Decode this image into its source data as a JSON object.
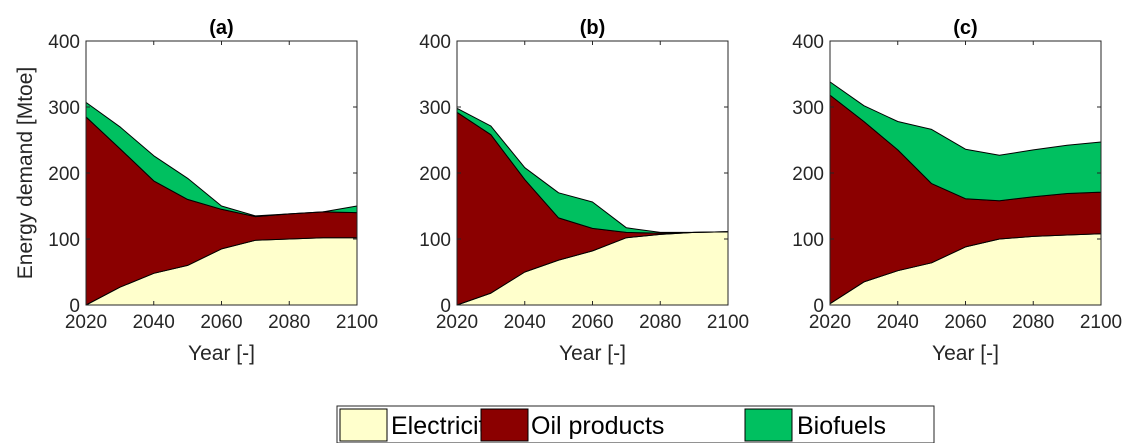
{
  "chart_data": {
    "type": "area",
    "stacked": true,
    "ylabel": "Energy demand [Mtoe]",
    "xlabel": "Year [-]",
    "xlim": [
      2020,
      2100
    ],
    "ylim": [
      0,
      400
    ],
    "xticks": [
      2020,
      2040,
      2060,
      2080,
      2100
    ],
    "yticks": [
      0,
      100,
      200,
      300,
      400
    ],
    "x": [
      2020,
      2030,
      2040,
      2050,
      2060,
      2070,
      2080,
      2090,
      2100
    ],
    "series_names": [
      "Electricity",
      "Oil products",
      "Biofuels"
    ],
    "colors": {
      "Electricity": "#ffffcc",
      "Oil products": "#8b0000",
      "Biofuels": "#00c060"
    },
    "legend": {
      "position": "bottom",
      "orientation": "horizontal",
      "entries": [
        "Electricity",
        "Oil products",
        "Biofuels"
      ]
    },
    "panels": [
      {
        "title": "(a)",
        "series": [
          {
            "name": "Electricity",
            "values": [
              0,
              27,
              48,
              60,
              85,
              98,
              100,
              102,
              102
            ]
          },
          {
            "name": "Oil products",
            "values": [
              285,
              210,
              140,
              100,
              60,
              36,
              38,
              39,
              38
            ]
          },
          {
            "name": "Biofuels",
            "values": [
              22,
              33,
              38,
              32,
              5,
              1,
              0,
              0,
              10
            ]
          }
        ]
      },
      {
        "title": "(b)",
        "series": [
          {
            "name": "Electricity",
            "values": [
              0,
              18,
              50,
              68,
              82,
              102,
              107,
              110,
              111
            ]
          },
          {
            "name": "Oil products",
            "values": [
              292,
              240,
              140,
              64,
              34,
              8,
              2,
              0,
              0
            ]
          },
          {
            "name": "Biofuels",
            "values": [
              6,
              13,
              18,
              38,
              40,
              7,
              1,
              0,
              0
            ]
          }
        ]
      },
      {
        "title": "(c)",
        "series": [
          {
            "name": "Electricity",
            "values": [
              2,
              35,
              52,
              64,
              88,
              100,
              104,
              106,
              108
            ]
          },
          {
            "name": "Oil products",
            "values": [
              316,
              243,
              183,
              120,
              73,
              58,
              60,
              63,
              63
            ]
          },
          {
            "name": "Biofuels",
            "values": [
              20,
              24,
              43,
              82,
              75,
              69,
              71,
              73,
              76
            ]
          }
        ]
      }
    ]
  }
}
